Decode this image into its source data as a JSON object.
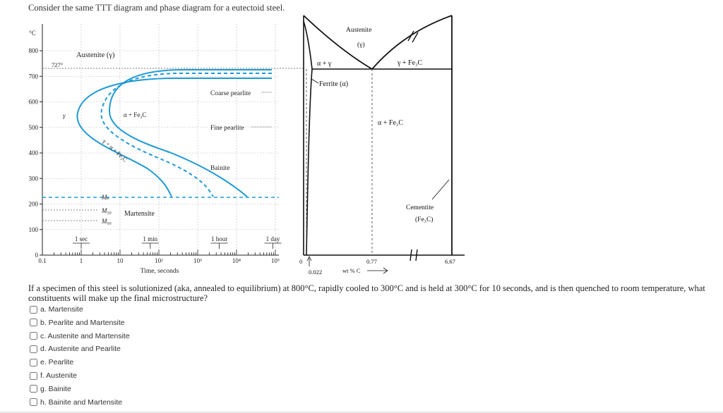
{
  "header": {
    "title": "Consider the same TTT diagram and phase diagram for a eutectoid steel."
  },
  "ttt": {
    "y_unit": "°C",
    "y_ticks": [
      "800",
      "700",
      "600",
      "500",
      "400",
      "300",
      "200",
      "100",
      "0"
    ],
    "x_ticks": [
      "0.1",
      "1",
      "10",
      "10²",
      "10³",
      "10⁴",
      "10⁵"
    ],
    "x_label": "Time, seconds",
    "time_marks": [
      "1 sec",
      "1 min",
      "1 hour",
      "1 day"
    ],
    "labels": {
      "austenite": "Austenite (γ)",
      "temp727": "727°",
      "gamma": "γ",
      "alpha_fe3c": "α + Fe₃C",
      "gamma_alpha_fe3c": "γ + α + Fe₃C",
      "coarse": "Coarse pearlite",
      "fine": "Fine pearlite",
      "bainite": "Bainite",
      "ms": "Mₛ",
      "m50": "M₅₀",
      "m90": "M₉₀",
      "martensite": "Martensite"
    }
  },
  "phase": {
    "austenite": "Austenite",
    "gamma_sym": "(γ)",
    "alpha_gamma": "α + γ",
    "gamma_fe3c": "γ + Fe₃C",
    "ferrite": "Ferrite (α)",
    "alpha_fe3c": "α + Fe₃C",
    "cementite": "Cementite",
    "fe3c": "(Fe₃C)",
    "x0": "0",
    "x_022": "0.022",
    "x_077": "0.77",
    "x_667": "6.67",
    "xlabel": "wt % C"
  },
  "question": {
    "text": "If a specimen of this steel is solutionized (aka, annealed to equilibrium) at 800°C, rapidly cooled to 300°C and is held at 300°C for 10 seconds, and is then quenched to room temperature, what constituents will make up the final microstructure?"
  },
  "options": [
    {
      "label": "a. Martensite",
      "checked": false
    },
    {
      "label": "b. Pearlite and Martensite",
      "checked": false
    },
    {
      "label": "c. Austenite and Martensite",
      "checked": false
    },
    {
      "label": "d. Austenite and Pearlite",
      "checked": false
    },
    {
      "label": "e. Pearlite",
      "checked": false
    },
    {
      "label": "f. Austenite",
      "checked": false
    },
    {
      "label": "g. Bainite",
      "checked": false
    },
    {
      "label": "h. Bainite and Martensite",
      "checked": false
    }
  ]
}
